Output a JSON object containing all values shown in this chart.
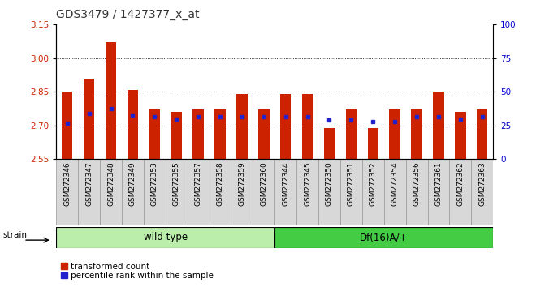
{
  "title": "GDS3479 / 1427377_x_at",
  "categories": [
    "GSM272346",
    "GSM272347",
    "GSM272348",
    "GSM272349",
    "GSM272353",
    "GSM272355",
    "GSM272357",
    "GSM272358",
    "GSM272359",
    "GSM272360",
    "GSM272344",
    "GSM272345",
    "GSM272350",
    "GSM272351",
    "GSM272352",
    "GSM272354",
    "GSM272356",
    "GSM272361",
    "GSM272362",
    "GSM272363"
  ],
  "bar_values": [
    2.85,
    2.91,
    3.07,
    2.86,
    2.77,
    2.76,
    2.77,
    2.77,
    2.84,
    2.77,
    2.84,
    2.84,
    2.69,
    2.77,
    2.69,
    2.77,
    2.77,
    2.85,
    2.76,
    2.77
  ],
  "percentile_values": [
    2.71,
    2.755,
    2.775,
    2.745,
    2.738,
    2.73,
    2.738,
    2.738,
    2.738,
    2.738,
    2.738,
    2.738,
    2.725,
    2.725,
    2.718,
    2.718,
    2.738,
    2.738,
    2.73,
    2.738
  ],
  "bar_color": "#cc2200",
  "percentile_color": "#2222cc",
  "ylim_left": [
    2.55,
    3.15
  ],
  "ylim_right": [
    0,
    100
  ],
  "yticks_left": [
    2.55,
    2.7,
    2.85,
    3.0,
    3.15
  ],
  "yticks_right": [
    0,
    25,
    50,
    75,
    100
  ],
  "grid_values": [
    2.7,
    2.85,
    3.0
  ],
  "wild_type_count": 10,
  "df16_count": 10,
  "group1_label": "wild type",
  "group2_label": "Df(16)A/+",
  "strain_label": "strain",
  "legend1": "transformed count",
  "legend2": "percentile rank within the sample",
  "group1_color": "#bbeeaa",
  "group2_color": "#44cc44",
  "title_color": "#333333",
  "title_fontsize": 10,
  "axis_color_left": "#cc2200",
  "axis_color_right": "#0000cc",
  "ticklabel_bg": "#d8d8d8",
  "bar_width": 0.5
}
